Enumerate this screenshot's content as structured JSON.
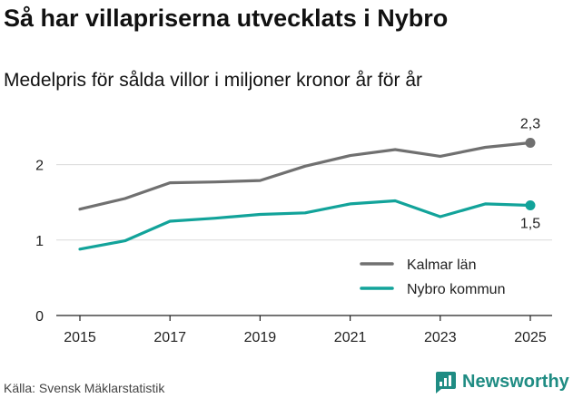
{
  "title": "Så har villapriserna utvecklats i Nybro",
  "subtitle": "Medelpris för sålda villor i miljoner kronor år för år",
  "source": "Källa: Svensk Mäklarstatistik",
  "brand": "Newsworthy",
  "colors": {
    "kalmar": "#707070",
    "nybro": "#12a39a",
    "grid": "#d9d9d9",
    "axis": "#222222",
    "brand": "#1f8c83"
  },
  "chart_data": {
    "type": "line",
    "title": "Så har villapriserna utvecklats i Nybro",
    "subtitle": "Medelpris för sålda villor i miljoner kronor år för år",
    "xlabel": "",
    "ylabel": "",
    "x": [
      2015,
      2016,
      2017,
      2018,
      2019,
      2020,
      2021,
      2022,
      2023,
      2024,
      2025
    ],
    "xticks": [
      "2015",
      "2017",
      "2019",
      "2021",
      "2023",
      "2025"
    ],
    "yticks": [
      "0",
      "1",
      "2"
    ],
    "xlim": [
      2015,
      2025
    ],
    "ylim": [
      0,
      2.5
    ],
    "grid": true,
    "legend_position": "bottom-right",
    "series": [
      {
        "name": "Kalmar län",
        "color": "#707070",
        "end_label": "2,3",
        "values": [
          1.41,
          1.55,
          1.76,
          1.77,
          1.79,
          1.98,
          2.12,
          2.2,
          2.11,
          2.23,
          2.29
        ]
      },
      {
        "name": "Nybro kommun",
        "color": "#12a39a",
        "end_label": "1,5",
        "values": [
          0.88,
          0.99,
          1.25,
          1.29,
          1.34,
          1.36,
          1.48,
          1.52,
          1.31,
          1.48,
          1.46
        ]
      }
    ]
  }
}
